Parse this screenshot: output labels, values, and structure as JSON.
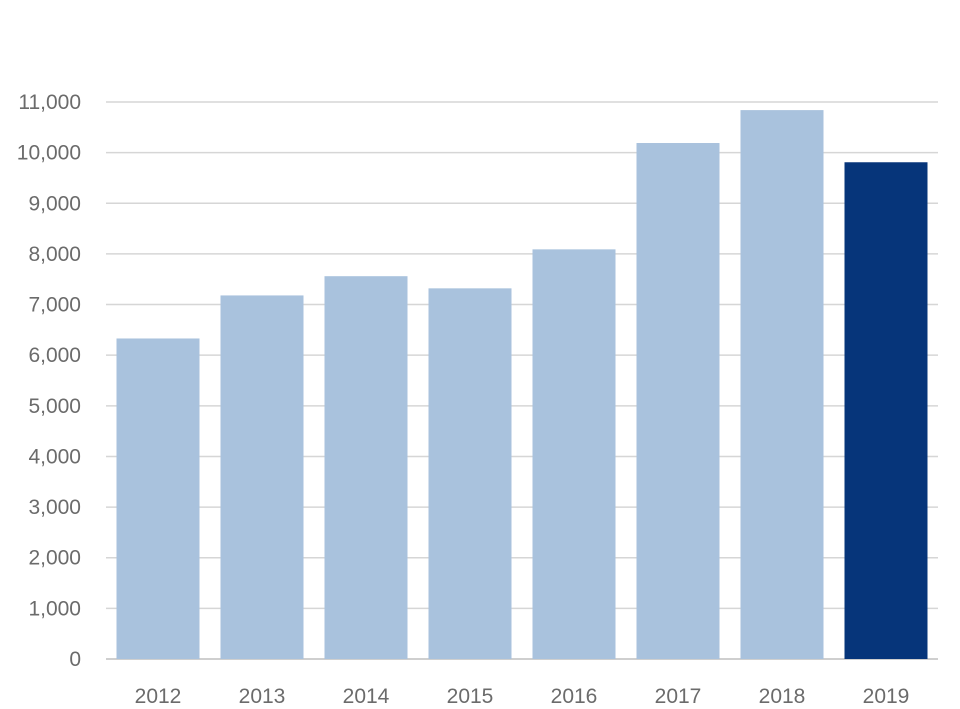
{
  "chart_data": {
    "type": "bar",
    "categories": [
      "2012",
      "2013",
      "2014",
      "2015",
      "2016",
      "2017",
      "2018",
      "2019"
    ],
    "values": [
      6330,
      7180,
      7560,
      7320,
      8090,
      10190,
      10840,
      9810
    ],
    "ylim": [
      0,
      11000
    ],
    "yticks": [
      0,
      1000,
      2000,
      3000,
      4000,
      5000,
      6000,
      7000,
      8000,
      9000,
      10000,
      11000
    ],
    "ytick_labels": [
      "0",
      "1,000",
      "2,000",
      "3,000",
      "4,000",
      "5,000",
      "6,000",
      "7,000",
      "8,000",
      "9,000",
      "10,000",
      "11,000"
    ],
    "grid": true,
    "colors": {
      "default_bar": "#a9c2dd",
      "highlight_bar": "#06357a"
    },
    "highlight_index": 7
  }
}
